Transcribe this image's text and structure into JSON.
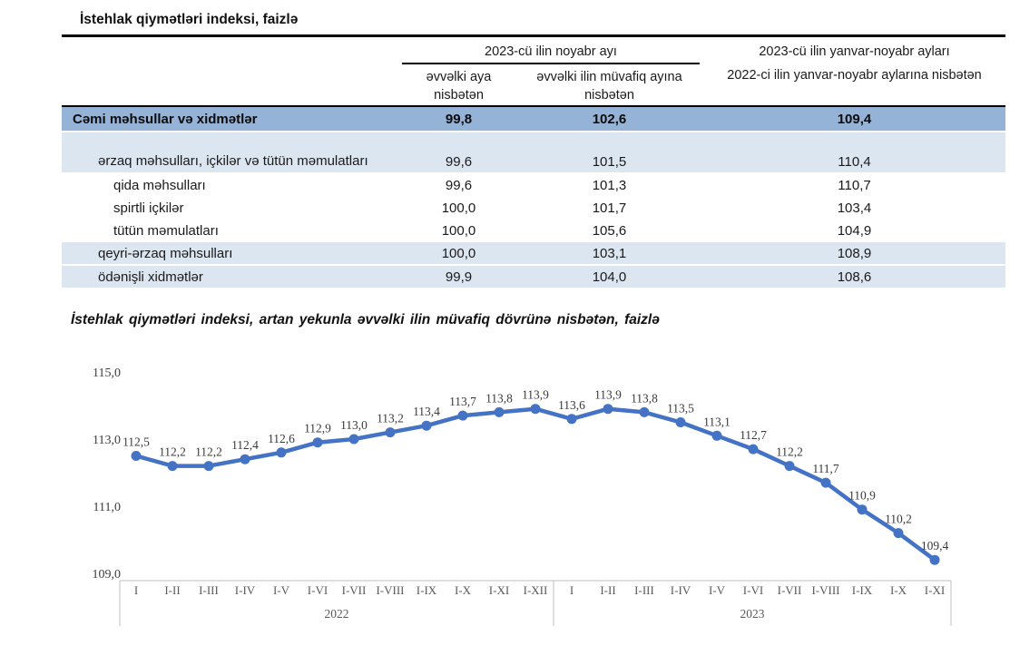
{
  "table": {
    "title": "İstehlak qiymətləri indeksi, faizlə",
    "header": {
      "group_november": "2023-cü ilin noyabr ayı",
      "sub_prev_month": "əvvəlki aya nisbətən",
      "sub_prev_year_same_month": "əvvəlki ilin müvafiq ayına nisbətən",
      "cumulative_line1": "2023-cü ilin yanvar-noyabr ayları",
      "cumulative_line2": "2022-ci ilin yanvar-noyabr aylarına nisbətən"
    },
    "rows": [
      {
        "label": "Cəmi məhsullar və xidmətlər",
        "values": [
          "99,8",
          "102,6",
          "109,4"
        ],
        "level": 0,
        "emphasis": true
      },
      {
        "label": "ərzaq məhsulları, içkilər və tütün məmulatları",
        "values": [
          "99,6",
          "101,5",
          "110,4"
        ],
        "level": 1,
        "shaded": true,
        "tall": true
      },
      {
        "label": "qida məhsulları",
        "values": [
          "99,6",
          "101,3",
          "110,7"
        ],
        "level": 2
      },
      {
        "label": "spirtli içkilər",
        "values": [
          "100,0",
          "101,7",
          "103,4"
        ],
        "level": 2
      },
      {
        "label": "tütün məmulatları",
        "values": [
          "100,0",
          "105,6",
          "104,9"
        ],
        "level": 2
      },
      {
        "label": "qeyri-ərzaq məhsulları",
        "values": [
          "100,0",
          "103,1",
          "108,9"
        ],
        "level": 1,
        "shaded": true
      },
      {
        "label": "ödənişli xidmətlər",
        "values": [
          "99,9",
          "104,0",
          "108,6"
        ],
        "level": 1,
        "shaded": true
      }
    ]
  },
  "chart_data": {
    "type": "line",
    "title": "İstehlak qiymətləri indeksi, artan yekunla əvvəlki ilin müvafiq dövrünə nisbətən, faizlə",
    "categories": [
      "I",
      "I-II",
      "I-III",
      "I-IV",
      "I-V",
      "I-VI",
      "I-VII",
      "I-VIII",
      "I-IX",
      "I-X",
      "I-XI",
      "I-XII",
      "I",
      "I-II",
      "I-III",
      "I-IV",
      "I-V",
      "I-VI",
      "I-VII",
      "I-VIII",
      "I-IX",
      "I-X",
      "I-XI"
    ],
    "year_groups": [
      {
        "label": "2022",
        "count": 12
      },
      {
        "label": "2023",
        "count": 11
      }
    ],
    "values": [
      112.5,
      112.2,
      112.2,
      112.4,
      112.6,
      112.9,
      113.0,
      113.2,
      113.4,
      113.7,
      113.8,
      113.9,
      113.6,
      113.9,
      113.8,
      113.5,
      113.1,
      112.7,
      112.2,
      111.7,
      110.9,
      110.2,
      109.4
    ],
    "data_labels": [
      "112,5",
      "112,2",
      "112,2",
      "112,4",
      "112,6",
      "112,9",
      "113,0",
      "113,2",
      "113,4",
      "113,7",
      "113,8",
      "113,9",
      "113,6",
      "113,9",
      "113,8",
      "113,5",
      "113,1",
      "112,7",
      "112,2",
      "111,7",
      "110,9",
      "110,2",
      "109,4"
    ],
    "yticks": [
      {
        "label": "115,0",
        "value": 115.0
      },
      {
        "label": "113,0",
        "value": 113.0
      },
      {
        "label": "111,0",
        "value": 111.0
      },
      {
        "label": "109,0",
        "value": 109.0
      }
    ],
    "ylim": [
      109.0,
      115.0
    ],
    "grid": false,
    "legend": false,
    "line_color": "#4472C4",
    "marker_color": "#4472C4",
    "label_color": "#3A3A3A",
    "axis_color": "#BFBFBF",
    "axis_text_color": "#595959"
  }
}
